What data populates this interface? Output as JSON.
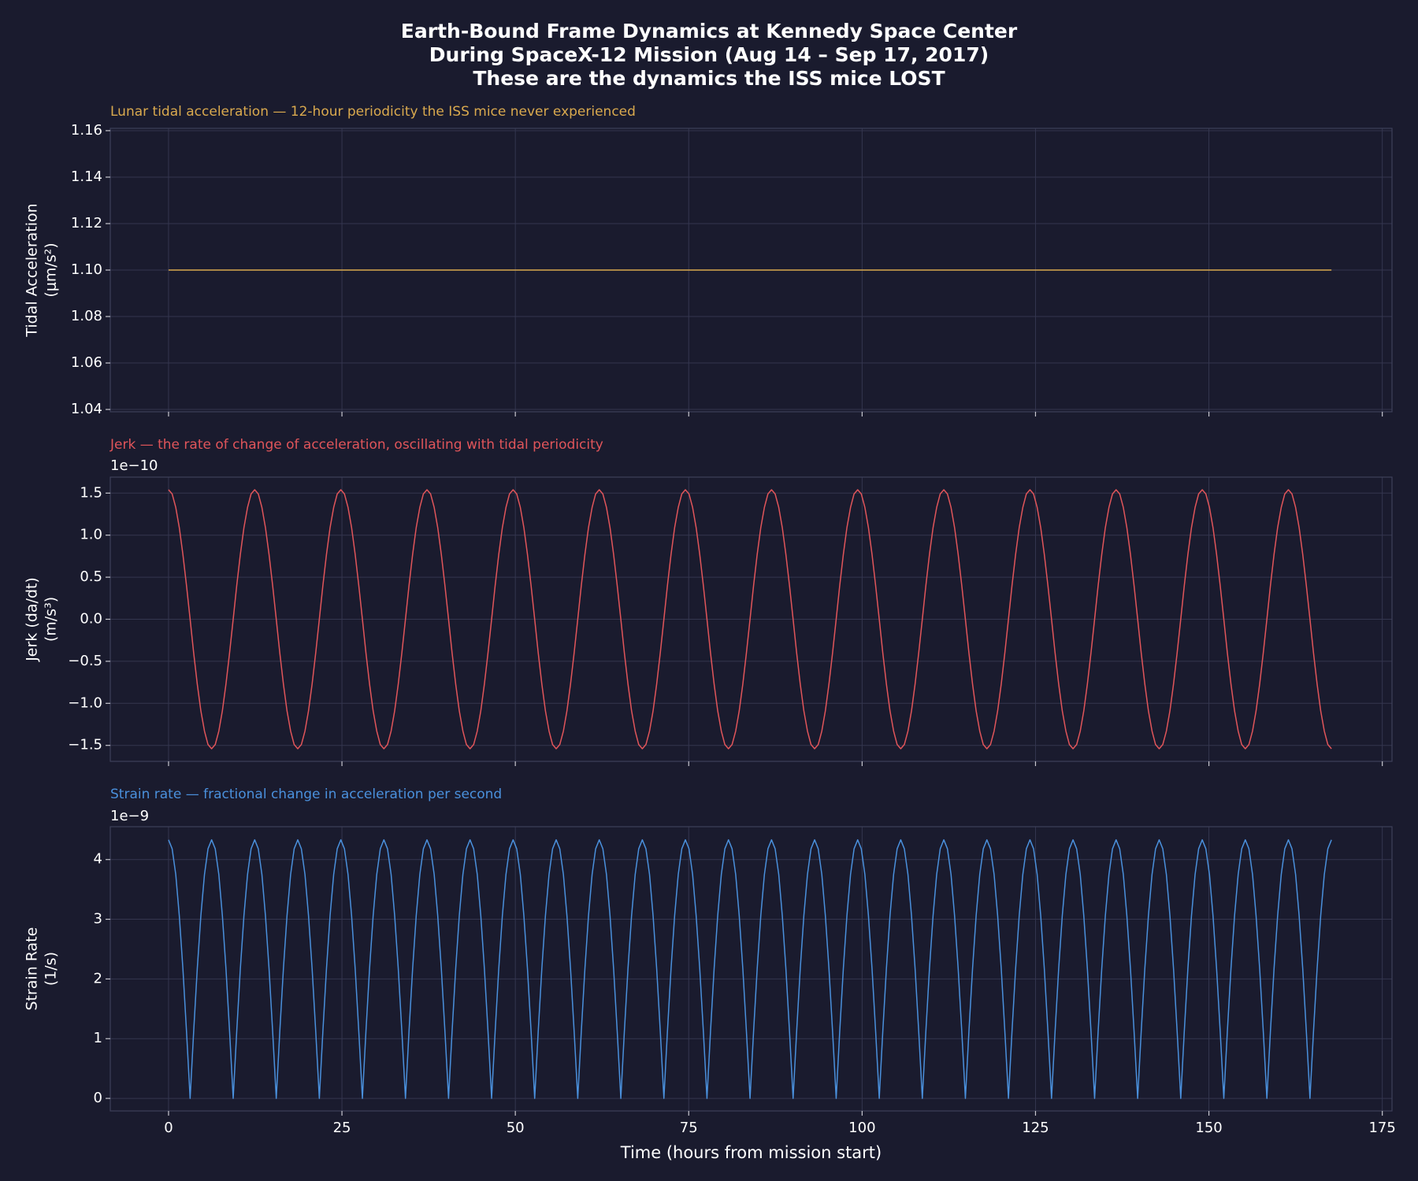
{
  "chart_data": {
    "type": "line",
    "title": [
      "Earth-Bound Frame Dynamics at Kennedy Space Center",
      "During SpaceX-12 Mission (Aug 14 – Sep 17, 2017)",
      "These are the dynamics the ISS mice LOST"
    ],
    "xlabel": "Time (hours from mission start)",
    "xlim": [
      -8.4,
      176.4
    ],
    "xticks": [
      0,
      25,
      50,
      75,
      100,
      125,
      150,
      175
    ],
    "grid": true,
    "x": [
      0,
      0.52,
      1.04,
      1.55,
      2.07,
      2.59,
      3.11,
      3.62,
      4.14,
      4.66,
      5.18,
      5.69,
      6.21,
      6.73,
      7.25,
      7.76,
      8.28,
      8.8,
      9.32,
      9.83,
      10.35,
      10.87,
      11.39,
      11.9,
      12.42,
      12.94,
      13.46,
      13.97,
      14.49,
      15.01,
      15.53,
      16.04,
      16.56,
      17.08,
      17.6,
      18.11,
      18.63,
      19.15,
      19.67,
      20.18,
      20.7,
      21.22,
      21.74,
      22.25,
      22.77,
      23.29,
      23.81,
      24.32,
      24.84,
      25.36,
      25.88,
      26.39,
      26.91,
      27.43,
      27.95,
      28.46,
      28.98,
      29.5,
      30.02,
      30.53,
      31.05,
      31.57,
      32.09,
      32.6,
      33.12,
      33.64,
      34.16,
      34.67,
      35.19,
      35.71,
      36.23,
      36.74,
      37.26,
      37.78,
      38.3,
      38.81,
      39.33,
      39.85,
      40.37,
      40.88,
      41.4,
      41.92,
      42.44,
      42.95,
      43.47,
      43.99,
      44.51,
      45.02,
      45.54,
      46.06,
      46.58,
      47.09,
      47.61,
      48.13,
      48.65,
      49.16,
      49.68,
      50.2,
      50.72,
      51.23,
      51.75,
      52.27,
      52.79,
      53.3,
      53.82,
      54.34,
      54.86,
      55.37,
      55.89,
      56.41,
      56.93,
      57.44,
      57.96,
      58.48,
      59.0,
      59.51,
      60.03,
      60.55,
      61.07,
      61.58,
      62.1,
      62.62,
      63.14,
      63.65,
      64.17,
      64.69,
      65.21,
      65.72,
      66.24,
      66.76,
      67.28,
      67.79,
      68.31,
      68.83,
      69.35,
      69.86,
      70.38,
      70.9,
      71.42,
      71.93,
      72.45,
      72.97,
      73.49,
      74.0,
      74.52,
      75.04,
      75.56,
      76.07,
      76.59,
      77.11,
      77.63,
      78.14,
      78.66,
      79.18,
      79.7,
      80.21,
      80.73,
      81.25,
      81.77,
      82.28,
      82.8,
      83.32,
      83.84,
      84.35,
      84.87,
      85.39,
      85.91,
      86.42,
      86.94,
      87.46,
      87.98,
      88.49,
      89.01,
      89.53,
      90.05,
      90.56,
      91.08,
      91.6,
      92.12,
      92.63,
      93.15,
      93.67,
      94.19,
      94.7,
      95.22,
      95.74,
      96.26,
      96.77,
      97.29,
      97.81,
      98.33,
      98.84,
      99.36,
      99.88,
      100.4,
      100.91,
      101.43,
      101.95,
      102.47,
      102.98,
      103.5,
      104.02,
      104.54,
      105.05,
      105.57,
      106.09,
      106.61,
      107.12,
      107.64,
      108.16,
      108.68,
      109.19,
      109.71,
      110.23,
      110.75,
      111.26,
      111.78,
      112.3,
      112.82,
      113.33,
      113.85,
      114.37,
      114.89,
      115.4,
      115.92,
      116.44,
      116.96,
      117.47,
      117.99,
      118.51,
      119.03,
      119.54,
      120.06,
      120.58,
      121.1,
      121.61,
      122.13,
      122.65,
      123.17,
      123.68,
      124.2,
      124.72,
      125.24,
      125.75,
      126.27,
      126.79,
      127.31,
      127.82,
      128.34,
      128.86,
      129.38,
      129.89,
      130.41,
      130.93,
      131.45,
      131.96,
      132.48,
      133.0,
      133.52,
      134.03,
      134.55,
      135.07,
      135.59,
      136.1,
      136.62,
      137.14,
      137.66,
      138.17,
      138.69,
      139.21,
      139.73,
      140.24,
      140.76,
      141.28,
      141.8,
      142.31,
      142.83,
      143.35,
      143.87,
      144.38,
      144.9,
      145.42,
      145.94,
      146.45,
      146.97,
      147.49,
      148.01,
      148.52,
      149.04,
      149.56,
      150.08,
      150.59,
      151.11,
      151.63,
      152.15,
      152.66,
      153.18,
      153.7,
      154.22,
      154.73,
      155.25,
      155.77,
      156.29,
      156.8,
      157.32,
      157.84,
      158.36,
      158.87,
      159.39,
      159.91,
      160.43,
      160.94,
      161.46,
      161.98,
      162.5,
      163.01,
      163.53,
      164.05,
      164.57,
      165.08,
      165.6,
      166.12,
      166.64,
      167.15,
      167.67
    ],
    "panels": [
      {
        "subtitle": "Lunar tidal acceleration — 12-hour periodicity the ISS mice never experienced",
        "ylabel": [
          "Tidal Acceleration",
          "(μm/s²)"
        ],
        "ylim": [
          1.039,
          1.161
        ],
        "yticks": [
          1.04,
          1.06,
          1.08,
          {
            "value": 1.1,
            "label": "1.10"
          },
          1.12,
          1.14,
          1.16
        ],
        "series": [
          {
            "color": "#d9a94e",
            "x": [
              0,
              167.67
            ],
            "values": [
              1.1,
              1.1
            ]
          }
        ]
      },
      {
        "subtitle": "Jerk — the rate of change of acceleration, oscillating with tidal periodicity",
        "ylabel": [
          "Jerk (da/dt)",
          "(m/s³)"
        ],
        "offset_label": "1e−10",
        "ylim": [
          -1.69,
          1.69
        ],
        "yticks": [
          {
            "value": -1.5,
            "label": "−1.5"
          },
          {
            "value": -1.0,
            "label": "−1.0"
          },
          {
            "value": -0.5,
            "label": "−0.5"
          },
          {
            "value": 0,
            "label": "0.0"
          },
          0.5,
          {
            "value": 1.0,
            "label": "1.0"
          },
          1.5
        ],
        "series": [
          {
            "color": "#e0555a",
            "values": [
              1.54,
              1.49,
              1.33,
              1.09,
              0.77,
              0.4,
              0,
              -0.4,
              -0.77,
              -1.09,
              -1.33,
              -1.49,
              -1.54,
              -1.49,
              -1.33,
              -1.09,
              -0.77,
              -0.4,
              0,
              0.4,
              0.77,
              1.09,
              1.33,
              1.49,
              1.54,
              1.49,
              1.33,
              1.09,
              0.77,
              0.4,
              0,
              -0.4,
              -0.77,
              -1.09,
              -1.33,
              -1.49,
              -1.54,
              -1.49,
              -1.33,
              -1.09,
              -0.77,
              -0.4,
              0,
              0.4,
              0.77,
              1.09,
              1.33,
              1.49,
              1.54,
              1.49,
              1.33,
              1.09,
              0.77,
              0.4,
              0,
              -0.4,
              -0.77,
              -1.09,
              -1.33,
              -1.49,
              -1.54,
              -1.49,
              -1.33,
              -1.09,
              -0.77,
              -0.4,
              0,
              0.4,
              0.77,
              1.09,
              1.33,
              1.49,
              1.54,
              1.49,
              1.33,
              1.09,
              0.77,
              0.4,
              0,
              -0.4,
              -0.77,
              -1.09,
              -1.33,
              -1.49,
              -1.54,
              -1.49,
              -1.33,
              -1.09,
              -0.77,
              -0.4,
              0,
              0.4,
              0.77,
              1.09,
              1.33,
              1.49,
              1.54,
              1.49,
              1.33,
              1.09,
              0.77,
              0.4,
              0,
              -0.4,
              -0.77,
              -1.09,
              -1.33,
              -1.49,
              -1.54,
              -1.49,
              -1.33,
              -1.09,
              -0.77,
              -0.4,
              0,
              0.4,
              0.77,
              1.09,
              1.33,
              1.49,
              1.54,
              1.49,
              1.33,
              1.09,
              0.77,
              0.4,
              0,
              -0.4,
              -0.77,
              -1.09,
              -1.33,
              -1.49,
              -1.54,
              -1.49,
              -1.33,
              -1.09,
              -0.77,
              -0.4,
              0,
              0.4,
              0.77,
              1.09,
              1.33,
              1.49,
              1.54,
              1.49,
              1.33,
              1.09,
              0.77,
              0.4,
              0,
              -0.4,
              -0.77,
              -1.09,
              -1.33,
              -1.49,
              -1.54,
              -1.49,
              -1.33,
              -1.09,
              -0.77,
              -0.4,
              0,
              0.4,
              0.77,
              1.09,
              1.33,
              1.49,
              1.54,
              1.49,
              1.33,
              1.09,
              0.77,
              0.4,
              0,
              -0.4,
              -0.77,
              -1.09,
              -1.33,
              -1.49,
              -1.54,
              -1.49,
              -1.33,
              -1.09,
              -0.77,
              -0.4,
              0,
              0.4,
              0.77,
              1.09,
              1.33,
              1.49,
              1.54,
              1.49,
              1.33,
              1.09,
              0.77,
              0.4,
              0,
              -0.4,
              -0.77,
              -1.09,
              -1.33,
              -1.49,
              -1.54,
              -1.49,
              -1.33,
              -1.09,
              -0.77,
              -0.4,
              0,
              0.4,
              0.77,
              1.09,
              1.33,
              1.49,
              1.54,
              1.49,
              1.33,
              1.09,
              0.77,
              0.4,
              0,
              -0.4,
              -0.77,
              -1.09,
              -1.33,
              -1.49,
              -1.54,
              -1.49,
              -1.33,
              -1.09,
              -0.77,
              -0.4,
              0,
              0.4,
              0.77,
              1.09,
              1.33,
              1.49,
              1.54,
              1.49,
              1.33,
              1.09,
              0.77,
              0.4,
              0,
              -0.4,
              -0.77,
              -1.09,
              -1.33,
              -1.49,
              -1.54,
              -1.49,
              -1.33,
              -1.09,
              -0.77,
              -0.4,
              0,
              0.4,
              0.77,
              1.09,
              1.33,
              1.49,
              1.54,
              1.49,
              1.33,
              1.09,
              0.77,
              0.4,
              0,
              -0.4,
              -0.77,
              -1.09,
              -1.33,
              -1.49,
              -1.54,
              -1.49,
              -1.33,
              -1.09,
              -0.77,
              -0.4,
              0,
              0.4,
              0.77,
              1.09,
              1.33,
              1.49,
              1.54,
              1.49,
              1.33,
              1.09,
              0.77,
              0.4,
              0,
              -0.4,
              -0.77,
              -1.09,
              -1.33,
              -1.49,
              -1.54,
              -1.49,
              -1.33,
              -1.09,
              -0.77,
              -0.4,
              0,
              0.4,
              0.77,
              1.09,
              1.33,
              1.49,
              1.54,
              1.49,
              1.33,
              1.09,
              0.77,
              0.4,
              0,
              -0.4,
              -0.77,
              -1.09,
              -1.33,
              -1.49,
              -1.54
            ]
          }
        ]
      },
      {
        "subtitle": "Strain rate — fractional change in acceleration per second",
        "ylabel": [
          "Strain Rate",
          "(1/s)"
        ],
        "offset_label": "1e−9",
        "ylim": [
          -0.21,
          4.55
        ],
        "yticks": [
          0,
          1,
          2,
          3,
          4
        ],
        "series": [
          {
            "color": "#4a90dc",
            "values": [
              4.33,
              4.18,
              3.75,
              3.06,
              2.17,
              1.12,
              0,
              1.12,
              2.17,
              3.06,
              3.75,
              4.18,
              4.33,
              4.18,
              3.75,
              3.06,
              2.17,
              1.12,
              0,
              1.12,
              2.17,
              3.06,
              3.75,
              4.18,
              4.33,
              4.18,
              3.75,
              3.06,
              2.17,
              1.12,
              0,
              1.12,
              2.17,
              3.06,
              3.75,
              4.18,
              4.33,
              4.18,
              3.75,
              3.06,
              2.17,
              1.12,
              0,
              1.12,
              2.17,
              3.06,
              3.75,
              4.18,
              4.33,
              4.18,
              3.75,
              3.06,
              2.17,
              1.12,
              0,
              1.12,
              2.17,
              3.06,
              3.75,
              4.18,
              4.33,
              4.18,
              3.75,
              3.06,
              2.17,
              1.12,
              0,
              1.12,
              2.17,
              3.06,
              3.75,
              4.18,
              4.33,
              4.18,
              3.75,
              3.06,
              2.17,
              1.12,
              0,
              1.12,
              2.17,
              3.06,
              3.75,
              4.18,
              4.33,
              4.18,
              3.75,
              3.06,
              2.17,
              1.12,
              0,
              1.12,
              2.17,
              3.06,
              3.75,
              4.18,
              4.33,
              4.18,
              3.75,
              3.06,
              2.17,
              1.12,
              0,
              1.12,
              2.17,
              3.06,
              3.75,
              4.18,
              4.33,
              4.18,
              3.75,
              3.06,
              2.17,
              1.12,
              0,
              1.12,
              2.17,
              3.06,
              3.75,
              4.18,
              4.33,
              4.18,
              3.75,
              3.06,
              2.17,
              1.12,
              0,
              1.12,
              2.17,
              3.06,
              3.75,
              4.18,
              4.33,
              4.18,
              3.75,
              3.06,
              2.17,
              1.12,
              0,
              1.12,
              2.17,
              3.06,
              3.75,
              4.18,
              4.33,
              4.18,
              3.75,
              3.06,
              2.17,
              1.12,
              0,
              1.12,
              2.17,
              3.06,
              3.75,
              4.18,
              4.33,
              4.18,
              3.75,
              3.06,
              2.17,
              1.12,
              0,
              1.12,
              2.17,
              3.06,
              3.75,
              4.18,
              4.33,
              4.18,
              3.75,
              3.06,
              2.17,
              1.12,
              0,
              1.12,
              2.17,
              3.06,
              3.75,
              4.18,
              4.33,
              4.18,
              3.75,
              3.06,
              2.17,
              1.12,
              0,
              1.12,
              2.17,
              3.06,
              3.75,
              4.18,
              4.33,
              4.18,
              3.75,
              3.06,
              2.17,
              1.12,
              0,
              1.12,
              2.17,
              3.06,
              3.75,
              4.18,
              4.33,
              4.18,
              3.75,
              3.06,
              2.17,
              1.12,
              0,
              1.12,
              2.17,
              3.06,
              3.75,
              4.18,
              4.33,
              4.18,
              3.75,
              3.06,
              2.17,
              1.12,
              0,
              1.12,
              2.17,
              3.06,
              3.75,
              4.18,
              4.33,
              4.18,
              3.75,
              3.06,
              2.17,
              1.12,
              0,
              1.12,
              2.17,
              3.06,
              3.75,
              4.18,
              4.33,
              4.18,
              3.75,
              3.06,
              2.17,
              1.12,
              0,
              1.12,
              2.17,
              3.06,
              3.75,
              4.18,
              4.33,
              4.18,
              3.75,
              3.06,
              2.17,
              1.12,
              0,
              1.12,
              2.17,
              3.06,
              3.75,
              4.18,
              4.33,
              4.18,
              3.75,
              3.06,
              2.17,
              1.12,
              0,
              1.12,
              2.17,
              3.06,
              3.75,
              4.18,
              4.33,
              4.18,
              3.75,
              3.06,
              2.17,
              1.12,
              0,
              1.12,
              2.17,
              3.06,
              3.75,
              4.18,
              4.33,
              4.18,
              3.75,
              3.06,
              2.17,
              1.12,
              0,
              1.12,
              2.17,
              3.06,
              3.75,
              4.18,
              4.33,
              4.18,
              3.75,
              3.06,
              2.17,
              1.12,
              0,
              1.12,
              2.17,
              3.06,
              3.75,
              4.18,
              4.33,
              4.18,
              3.75,
              3.06,
              2.17,
              1.12,
              0,
              1.12,
              2.17,
              3.06,
              3.75,
              4.18,
              4.33
            ]
          }
        ]
      }
    ]
  }
}
